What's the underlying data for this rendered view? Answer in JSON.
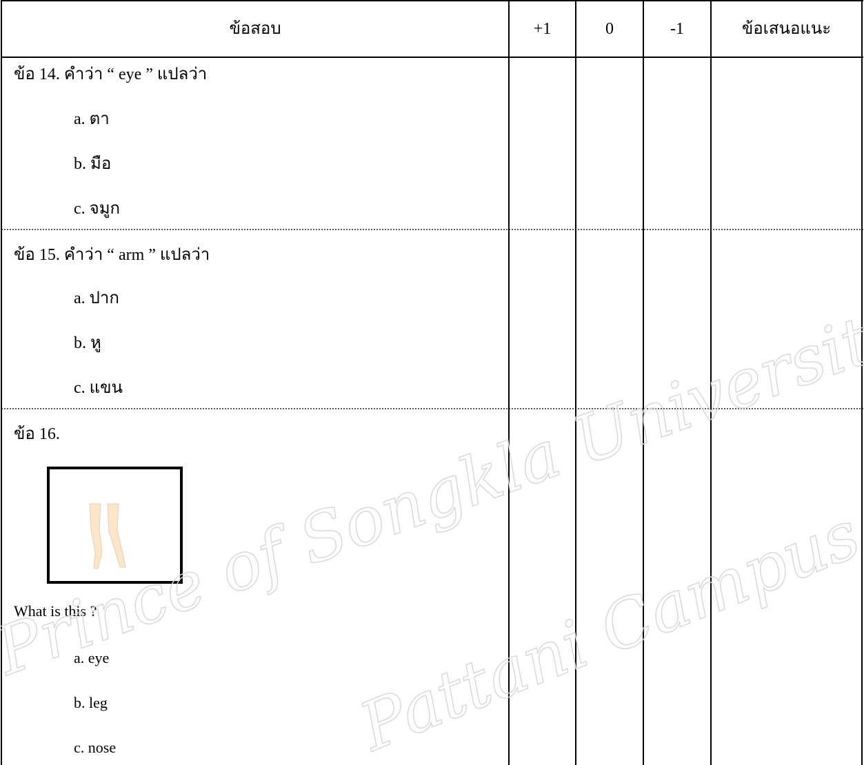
{
  "table": {
    "header": [
      "ข้อสอบ",
      "+1",
      "0",
      "-1",
      "ข้อเสนอแนะ"
    ],
    "items": [
      {
        "question": "ข้อ 14.  คำว่า “ eye ” แปลว่า",
        "choices": [
          "a.  ตา",
          "b.  มือ",
          "c.  จมูก"
        ]
      },
      {
        "question": "ข้อ 15.  คำว่า “ arm ” แปลว่า",
        "choices": [
          "a.  ปาก",
          "b.  หู",
          "c.  แขน"
        ]
      },
      {
        "question": "ข้อ 16.",
        "prompt": "What  is  this ?",
        "choices": [
          "a.  eye",
          "b.  leg",
          "c.  nose"
        ]
      }
    ]
  },
  "watermark": [
    "Prince of Songkla University",
    "Pattani Campus"
  ]
}
